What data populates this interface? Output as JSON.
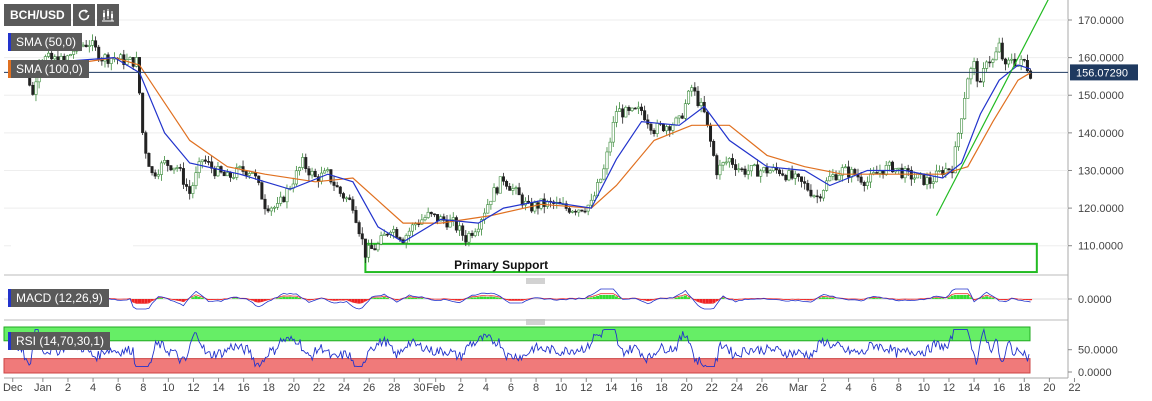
{
  "toolbar": {
    "symbol": "BCH/USD",
    "refresh_icon": "refresh-icon",
    "chart_type_icon": "candlestick-icon"
  },
  "indicators": {
    "sma50": {
      "label": "SMA (50,0)",
      "color": "#2233cc"
    },
    "sma100": {
      "label": "SMA (100,0)",
      "color": "#e07020"
    },
    "macd": {
      "label": "MACD (12,26,9)",
      "color": "#2233cc"
    },
    "rsi": {
      "label": "RSI (14,70,30,1)",
      "color": "#2233cc"
    }
  },
  "last_price": "156.07290",
  "annotation": "Primary Support",
  "chart_data": [
    {
      "type": "candlestick",
      "pair": "BCH/USD",
      "y_ticks": [
        "170.0000",
        "160.0000",
        "150.0000",
        "140.0000",
        "130.0000",
        "120.0000",
        "110.0000"
      ],
      "ylim": [
        102,
        175
      ],
      "x_ticks": [
        "Dec",
        "Jan",
        "2",
        "4",
        "6",
        "8",
        "10",
        "12",
        "14",
        "16",
        "18",
        "20",
        "22",
        "24",
        "26",
        "28",
        "30",
        "Feb",
        "2",
        "4",
        "6",
        "8",
        "10",
        "12",
        "14",
        "16",
        "18",
        "20",
        "22",
        "24",
        "26",
        "Mar",
        "2",
        "4",
        "6",
        "8",
        "10",
        "12",
        "14",
        "16",
        "18",
        "20",
        "22"
      ],
      "close_path": [
        {
          "d": 0,
          "v": 158
        },
        {
          "d": 1,
          "v": 157
        },
        {
          "d": 1.5,
          "v": 150
        },
        {
          "d": 2,
          "v": 160
        },
        {
          "d": 4,
          "v": 159
        },
        {
          "d": 5,
          "v": 163
        },
        {
          "d": 6,
          "v": 164
        },
        {
          "d": 7,
          "v": 160
        },
        {
          "d": 8,
          "v": 160
        },
        {
          "d": 9,
          "v": 159
        },
        {
          "d": 9.8,
          "v": 159
        },
        {
          "d": 10.3,
          "v": 138
        },
        {
          "d": 11,
          "v": 129
        },
        {
          "d": 12,
          "v": 132
        },
        {
          "d": 13,
          "v": 131
        },
        {
          "d": 14,
          "v": 124
        },
        {
          "d": 15,
          "v": 133
        },
        {
          "d": 16,
          "v": 130
        },
        {
          "d": 17,
          "v": 128
        },
        {
          "d": 18,
          "v": 130
        },
        {
          "d": 19,
          "v": 130
        },
        {
          "d": 20,
          "v": 121
        },
        {
          "d": 21,
          "v": 120
        },
        {
          "d": 22,
          "v": 126
        },
        {
          "d": 23,
          "v": 132
        },
        {
          "d": 24,
          "v": 128
        },
        {
          "d": 25,
          "v": 129
        },
        {
          "d": 26,
          "v": 124
        },
        {
          "d": 27,
          "v": 121
        },
        {
          "d": 28,
          "v": 108
        },
        {
          "d": 29,
          "v": 110
        },
        {
          "d": 30,
          "v": 115
        },
        {
          "d": 31,
          "v": 112
        },
        {
          "d": 32,
          "v": 116
        },
        {
          "d": 33,
          "v": 118
        },
        {
          "d": 34,
          "v": 117
        },
        {
          "d": 35,
          "v": 116
        },
        {
          "d": 36,
          "v": 112
        },
        {
          "d": 37,
          "v": 116
        },
        {
          "d": 38,
          "v": 123
        },
        {
          "d": 39,
          "v": 128
        },
        {
          "d": 40,
          "v": 124
        },
        {
          "d": 41,
          "v": 120
        },
        {
          "d": 42,
          "v": 121
        },
        {
          "d": 43,
          "v": 121
        },
        {
          "d": 44,
          "v": 120
        },
        {
          "d": 45,
          "v": 120
        },
        {
          "d": 46,
          "v": 121
        },
        {
          "d": 47,
          "v": 130
        },
        {
          "d": 48,
          "v": 146
        },
        {
          "d": 49,
          "v": 145
        },
        {
          "d": 50,
          "v": 146
        },
        {
          "d": 51,
          "v": 141
        },
        {
          "d": 52,
          "v": 142
        },
        {
          "d": 53,
          "v": 143
        },
        {
          "d": 54,
          "v": 152
        },
        {
          "d": 55,
          "v": 145
        },
        {
          "d": 56,
          "v": 130
        },
        {
          "d": 57,
          "v": 133
        },
        {
          "d": 58,
          "v": 130
        },
        {
          "d": 59,
          "v": 130
        },
        {
          "d": 60,
          "v": 130
        },
        {
          "d": 61,
          "v": 130
        },
        {
          "d": 62,
          "v": 128
        },
        {
          "d": 63,
          "v": 126
        },
        {
          "d": 64,
          "v": 123
        },
        {
          "d": 65,
          "v": 128
        },
        {
          "d": 66,
          "v": 130
        },
        {
          "d": 67,
          "v": 129
        },
        {
          "d": 68,
          "v": 127
        },
        {
          "d": 69,
          "v": 130
        },
        {
          "d": 70,
          "v": 131
        },
        {
          "d": 71,
          "v": 129
        },
        {
          "d": 72,
          "v": 128
        },
        {
          "d": 73,
          "v": 127
        },
        {
          "d": 74,
          "v": 130
        },
        {
          "d": 74.8,
          "v": 131
        },
        {
          "d": 75.5,
          "v": 145
        },
        {
          "d": 76,
          "v": 155
        },
        {
          "d": 76.5,
          "v": 158
        },
        {
          "d": 77,
          "v": 152
        },
        {
          "d": 77.5,
          "v": 160
        },
        {
          "d": 78,
          "v": 159
        },
        {
          "d": 78.5,
          "v": 163
        },
        {
          "d": 79,
          "v": 157
        },
        {
          "d": 79.5,
          "v": 160
        },
        {
          "d": 80,
          "v": 158
        },
        {
          "d": 80.5,
          "v": 159
        },
        {
          "d": 81,
          "v": 156
        }
      ],
      "sma50_path": [
        {
          "d": 0,
          "v": 157
        },
        {
          "d": 4,
          "v": 159
        },
        {
          "d": 8,
          "v": 160
        },
        {
          "d": 10,
          "v": 156
        },
        {
          "d": 12,
          "v": 140
        },
        {
          "d": 14,
          "v": 132
        },
        {
          "d": 18,
          "v": 129
        },
        {
          "d": 22,
          "v": 125
        },
        {
          "d": 25,
          "v": 129
        },
        {
          "d": 27,
          "v": 127
        },
        {
          "d": 29,
          "v": 115
        },
        {
          "d": 31,
          "v": 111
        },
        {
          "d": 34,
          "v": 117
        },
        {
          "d": 37,
          "v": 116
        },
        {
          "d": 39,
          "v": 120
        },
        {
          "d": 42,
          "v": 122
        },
        {
          "d": 46,
          "v": 120
        },
        {
          "d": 48,
          "v": 133
        },
        {
          "d": 50,
          "v": 143
        },
        {
          "d": 53,
          "v": 142
        },
        {
          "d": 55,
          "v": 147
        },
        {
          "d": 57,
          "v": 138
        },
        {
          "d": 60,
          "v": 131
        },
        {
          "d": 63,
          "v": 130
        },
        {
          "d": 65,
          "v": 126
        },
        {
          "d": 68,
          "v": 130
        },
        {
          "d": 71,
          "v": 130
        },
        {
          "d": 74,
          "v": 128
        },
        {
          "d": 75.5,
          "v": 132
        },
        {
          "d": 77,
          "v": 145
        },
        {
          "d": 78.5,
          "v": 154
        },
        {
          "d": 80,
          "v": 158
        },
        {
          "d": 81,
          "v": 157
        }
      ],
      "sma100_path": [
        {
          "d": 0,
          "v": 159
        },
        {
          "d": 4,
          "v": 158
        },
        {
          "d": 8,
          "v": 160
        },
        {
          "d": 10,
          "v": 158
        },
        {
          "d": 12,
          "v": 148
        },
        {
          "d": 14,
          "v": 138
        },
        {
          "d": 17,
          "v": 131
        },
        {
          "d": 20,
          "v": 129
        },
        {
          "d": 24,
          "v": 127
        },
        {
          "d": 27,
          "v": 128
        },
        {
          "d": 29,
          "v": 122
        },
        {
          "d": 31,
          "v": 116
        },
        {
          "d": 34,
          "v": 116
        },
        {
          "d": 38,
          "v": 118
        },
        {
          "d": 42,
          "v": 121
        },
        {
          "d": 46,
          "v": 120
        },
        {
          "d": 48,
          "v": 126
        },
        {
          "d": 51,
          "v": 138
        },
        {
          "d": 54,
          "v": 142
        },
        {
          "d": 57,
          "v": 142
        },
        {
          "d": 60,
          "v": 134
        },
        {
          "d": 63,
          "v": 131
        },
        {
          "d": 66,
          "v": 129
        },
        {
          "d": 70,
          "v": 129
        },
        {
          "d": 74,
          "v": 129
        },
        {
          "d": 76,
          "v": 131
        },
        {
          "d": 78,
          "v": 143
        },
        {
          "d": 80,
          "v": 154
        },
        {
          "d": 81,
          "v": 156
        }
      ],
      "trendline": {
        "from": {
          "d": 73.5,
          "v": 118
        },
        "to": {
          "d": 82.5,
          "v": 176
        }
      },
      "support_zone": {
        "from_d": 28,
        "to_d": 81.5,
        "low": 103,
        "high": 110.5
      },
      "last_price_level": 156.0729
    },
    {
      "type": "macd",
      "y_ticks": [
        "0.0000"
      ],
      "ylim": [
        -1,
        1
      ]
    },
    {
      "type": "rsi",
      "y_ticks": [
        "50.0000",
        "0.0000"
      ],
      "bands": {
        "overbought": 70,
        "oversold": 30
      },
      "ylim": [
        0,
        100
      ]
    }
  ]
}
